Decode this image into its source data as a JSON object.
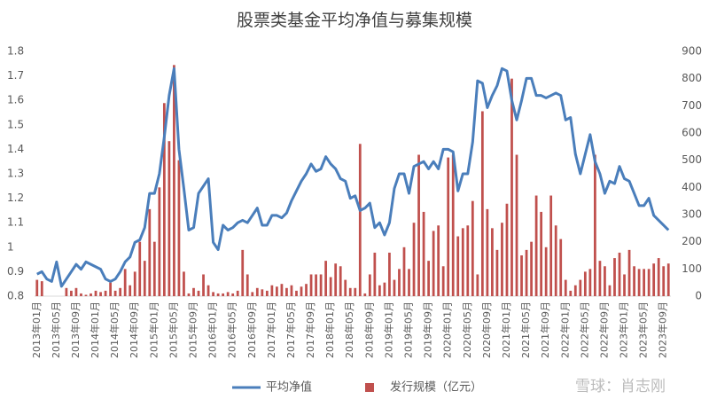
{
  "chart_data": {
    "type": "bar-line",
    "title": "股票类基金平均净值与募集规模",
    "watermark": "雪球：肖志刚",
    "categories": [
      "2013年01月",
      null,
      null,
      null,
      "2013年05月",
      null,
      null,
      null,
      "2013年09月",
      null,
      null,
      null,
      "2014年01月",
      null,
      null,
      null,
      "2014年05月",
      null,
      null,
      null,
      "2014年09月",
      null,
      null,
      null,
      "2015年01月",
      null,
      null,
      null,
      "2015年05月",
      null,
      null,
      null,
      "2015年09月",
      null,
      null,
      null,
      "2016年01月",
      null,
      null,
      null,
      "2016年05月",
      null,
      null,
      null,
      "2016年09月",
      null,
      null,
      null,
      "2017年01月",
      null,
      null,
      null,
      "2017年05月",
      null,
      null,
      null,
      "2017年09月",
      null,
      null,
      null,
      "2018年01月",
      null,
      null,
      null,
      "2018年05月",
      null,
      null,
      null,
      "2018年09月",
      null,
      null,
      null,
      "2019年01月",
      null,
      null,
      null,
      "2019年05月",
      null,
      null,
      null,
      "2019年09月",
      null,
      null,
      null,
      "2020年01月",
      null,
      null,
      null,
      "2020年05月",
      null,
      null,
      null,
      "2020年09月",
      null,
      null,
      null,
      "2021年01月",
      null,
      null,
      null,
      "2021年05月",
      null,
      null,
      null,
      "2021年09月",
      null,
      null,
      null,
      "2022年01月",
      null,
      null,
      null,
      "2022年05月",
      null,
      null,
      null,
      "2022年09月",
      null,
      null,
      null,
      "2023年01月",
      null,
      null,
      null,
      "2023年05月",
      null,
      null,
      null,
      "2023年09月",
      null
    ],
    "series": [
      {
        "name": "平均净值",
        "type": "line",
        "color": "#4a7ebb",
        "axis": "y",
        "values": [
          0.89,
          0.9,
          0.87,
          0.86,
          0.94,
          0.84,
          0.87,
          0.9,
          0.93,
          0.91,
          0.94,
          0.93,
          0.92,
          0.91,
          0.87,
          0.86,
          0.87,
          0.9,
          0.94,
          0.96,
          1.02,
          1.03,
          1.08,
          1.22,
          1.22,
          1.3,
          1.45,
          1.62,
          1.73,
          1.4,
          1.24,
          1.07,
          1.08,
          1.22,
          1.25,
          1.28,
          1.02,
          0.99,
          1.09,
          1.07,
          1.08,
          1.1,
          1.11,
          1.1,
          1.13,
          1.16,
          1.09,
          1.09,
          1.13,
          1.13,
          1.12,
          1.14,
          1.19,
          1.23,
          1.27,
          1.3,
          1.34,
          1.31,
          1.32,
          1.37,
          1.34,
          1.32,
          1.28,
          1.27,
          1.2,
          1.21,
          1.15,
          1.16,
          1.18,
          1.08,
          1.1,
          1.05,
          1.1,
          1.24,
          1.3,
          1.3,
          1.22,
          1.33,
          1.34,
          1.35,
          1.32,
          1.35,
          1.32,
          1.4,
          1.4,
          1.39,
          1.23,
          1.3,
          1.3,
          1.43,
          1.68,
          1.67,
          1.57,
          1.62,
          1.66,
          1.73,
          1.72,
          1.6,
          1.52,
          1.6,
          1.69,
          1.69,
          1.62,
          1.62,
          1.61,
          1.62,
          1.63,
          1.62,
          1.52,
          1.53,
          1.38,
          1.3,
          1.38,
          1.46,
          1.35,
          1.3,
          1.22,
          1.27,
          1.26,
          1.33,
          1.28,
          1.27,
          1.22,
          1.17,
          1.17,
          1.2,
          1.13,
          1.11,
          1.09,
          1.07
        ]
      },
      {
        "name": "发行规模（亿元）",
        "type": "bar",
        "color": "#c0504d",
        "axis": "y2",
        "values": [
          60,
          55,
          0,
          0,
          0,
          0,
          30,
          20,
          30,
          10,
          5,
          10,
          20,
          15,
          20,
          50,
          20,
          30,
          100,
          40,
          90,
          200,
          130,
          320,
          200,
          400,
          710,
          570,
          850,
          500,
          90,
          10,
          30,
          20,
          80,
          40,
          15,
          10,
          10,
          15,
          10,
          20,
          170,
          80,
          15,
          30,
          25,
          20,
          40,
          35,
          45,
          30,
          40,
          20,
          35,
          45,
          80,
          80,
          80,
          130,
          70,
          120,
          110,
          60,
          30,
          30,
          560,
          10,
          80,
          160,
          40,
          50,
          160,
          60,
          100,
          180,
          100,
          270,
          520,
          310,
          130,
          240,
          260,
          110,
          510,
          520,
          220,
          250,
          260,
          350,
          80,
          680,
          320,
          250,
          170,
          270,
          340,
          800,
          520,
          150,
          170,
          200,
          370,
          310,
          180,
          370,
          260,
          210,
          60,
          20,
          40,
          60,
          90,
          100,
          520,
          130,
          110,
          40,
          140,
          160,
          80,
          170,
          110,
          100,
          100,
          100,
          120,
          140,
          110,
          120
        ]
      }
    ],
    "ylim": [
      0.8,
      1.8
    ],
    "yticks": [
      0.8,
      0.9,
      1,
      1.1,
      1.2,
      1.3,
      1.4,
      1.5,
      1.6,
      1.7,
      1.8
    ],
    "y2lim": [
      0,
      900
    ],
    "y2ticks": [
      0,
      100,
      200,
      300,
      400,
      500,
      600,
      700,
      800,
      900
    ],
    "legend": "bottom"
  }
}
